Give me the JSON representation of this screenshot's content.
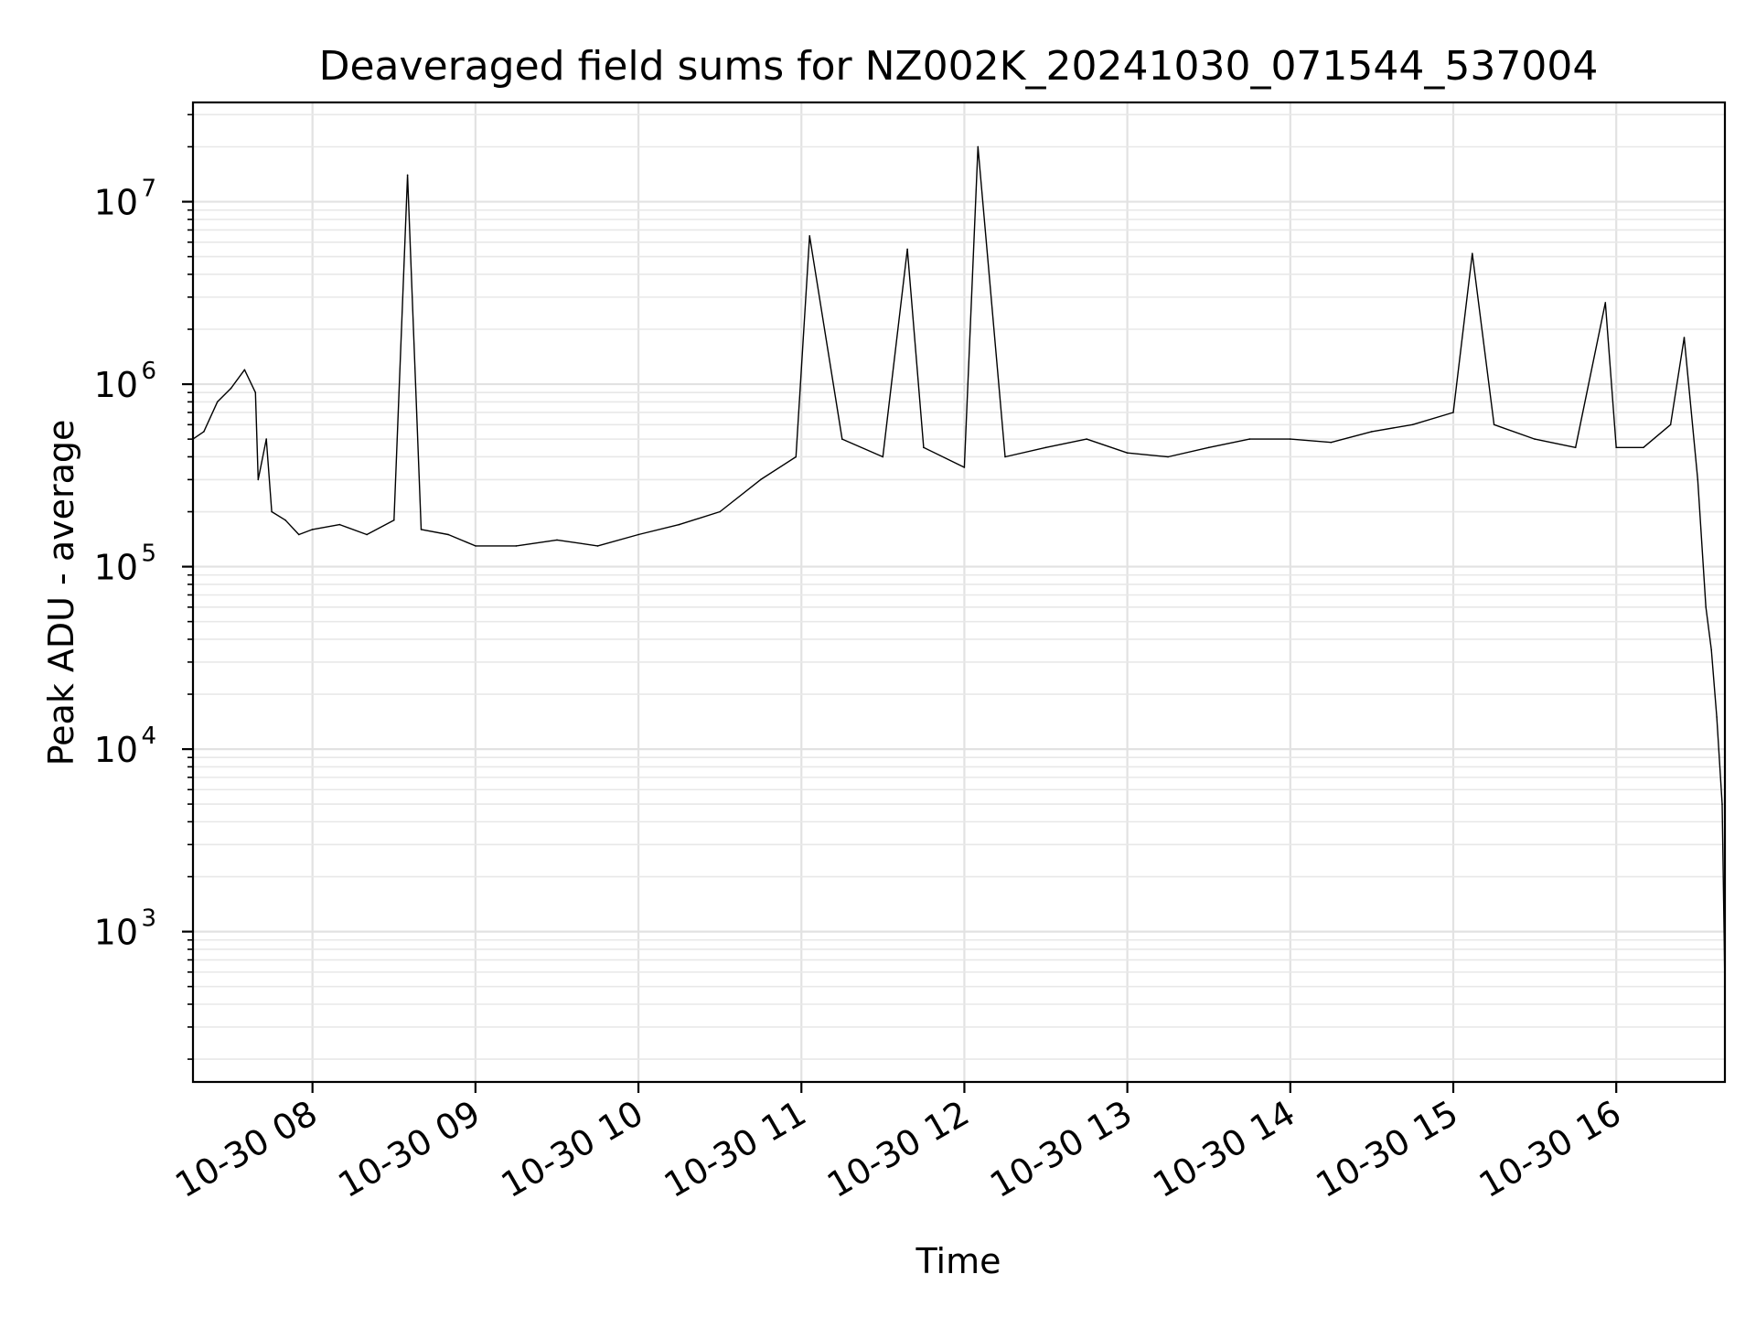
{
  "chart_data": {
    "type": "line",
    "title": "Deaveraged field sums for NZ002K_20241030_071544_537004",
    "xlabel": "Time",
    "ylabel": "Peak ADU - average",
    "y_scale": "log",
    "ylim": [
      150,
      35000000
    ],
    "xlim": [
      "2024-10-30 07:16",
      "2024-10-30 16:40"
    ],
    "grid": true,
    "x_ticks": [
      "10-30 08",
      "10-30 09",
      "10-30 10",
      "10-30 11",
      "10-30 12",
      "10-30 13",
      "10-30 14",
      "10-30 15",
      "10-30 16"
    ],
    "y_ticks": [
      {
        "base": "10",
        "exp": "3",
        "value": 1000
      },
      {
        "base": "10",
        "exp": "4",
        "value": 10000
      },
      {
        "base": "10",
        "exp": "5",
        "value": 100000
      },
      {
        "base": "10",
        "exp": "6",
        "value": 1000000
      },
      {
        "base": "10",
        "exp": "7",
        "value": 10000000
      }
    ],
    "series": [
      {
        "color": "#000000",
        "x": [
          "2024-10-30 07:16",
          "2024-10-30 07:20",
          "2024-10-30 07:25",
          "2024-10-30 07:30",
          "2024-10-30 07:35",
          "2024-10-30 07:39",
          "2024-10-30 07:40",
          "2024-10-30 07:43",
          "2024-10-30 07:45",
          "2024-10-30 07:50",
          "2024-10-30 07:55",
          "2024-10-30 08:00",
          "2024-10-30 08:10",
          "2024-10-30 08:20",
          "2024-10-30 08:30",
          "2024-10-30 08:35",
          "2024-10-30 08:40",
          "2024-10-30 08:50",
          "2024-10-30 09:00",
          "2024-10-30 09:15",
          "2024-10-30 09:30",
          "2024-10-30 09:45",
          "2024-10-30 10:00",
          "2024-10-30 10:15",
          "2024-10-30 10:30",
          "2024-10-30 10:45",
          "2024-10-30 10:58",
          "2024-10-30 11:03",
          "2024-10-30 11:15",
          "2024-10-30 11:30",
          "2024-10-30 11:39",
          "2024-10-30 11:45",
          "2024-10-30 12:00",
          "2024-10-30 12:05",
          "2024-10-30 12:15",
          "2024-10-30 12:30",
          "2024-10-30 12:45",
          "2024-10-30 13:00",
          "2024-10-30 13:15",
          "2024-10-30 13:30",
          "2024-10-30 13:45",
          "2024-10-30 14:00",
          "2024-10-30 14:15",
          "2024-10-30 14:30",
          "2024-10-30 14:45",
          "2024-10-30 15:00",
          "2024-10-30 15:07",
          "2024-10-30 15:15",
          "2024-10-30 15:30",
          "2024-10-30 15:45",
          "2024-10-30 15:56",
          "2024-10-30 16:00",
          "2024-10-30 16:10",
          "2024-10-30 16:20",
          "2024-10-30 16:25",
          "2024-10-30 16:30",
          "2024-10-30 16:33",
          "2024-10-30 16:35",
          "2024-10-30 16:37",
          "2024-10-30 16:39",
          "2024-10-30 16:40"
        ],
        "y": [
          500000,
          550000,
          800000,
          950000,
          1200000,
          900000,
          300000,
          500000,
          200000,
          180000,
          150000,
          160000,
          170000,
          150000,
          180000,
          14000000,
          160000,
          150000,
          130000,
          130000,
          140000,
          130000,
          150000,
          170000,
          200000,
          300000,
          400000,
          6500000,
          500000,
          400000,
          5500000,
          450000,
          350000,
          20000000,
          400000,
          450000,
          500000,
          420000,
          400000,
          450000,
          500000,
          500000,
          480000,
          550000,
          600000,
          700000,
          5200000,
          600000,
          500000,
          450000,
          2800000,
          450000,
          450000,
          600000,
          1800000,
          300000,
          60000,
          35000,
          15000,
          5000,
          500
        ]
      }
    ]
  }
}
